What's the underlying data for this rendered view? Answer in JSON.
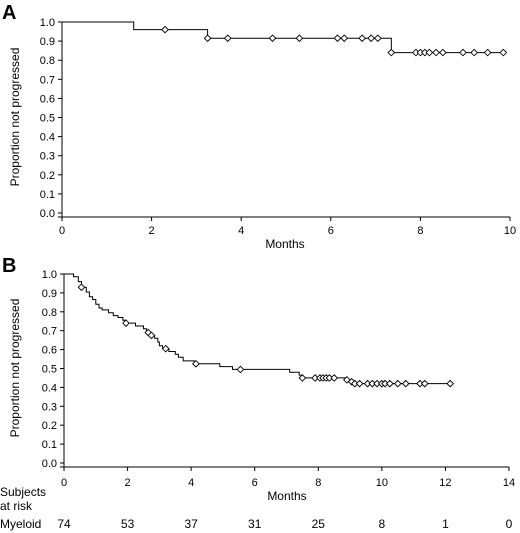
{
  "chart_data": [
    {
      "type": "line",
      "subtype": "kaplan-meier step",
      "panel_label": "A",
      "xlabel": "Months",
      "ylabel": "Proportion not progressed",
      "xlim": [
        0,
        10
      ],
      "ylim": [
        0,
        1.0
      ],
      "x_ticks": [
        0,
        2,
        4,
        6,
        8,
        10
      ],
      "y_ticks": [
        0.0,
        0.1,
        0.2,
        0.3,
        0.4,
        0.5,
        0.6,
        0.7,
        0.8,
        0.9,
        1.0
      ],
      "x_tick_labels": [
        "0",
        "2",
        "4",
        "6",
        "8",
        "10"
      ],
      "y_tick_labels": [
        "0.0",
        "0.1",
        "0.2",
        "0.3",
        "0.4",
        "0.5",
        "0.6",
        "0.7",
        "0.8",
        "0.9",
        "1.0"
      ],
      "grid": false,
      "series": [
        {
          "steps": [
            [
              0,
              1.0
            ],
            [
              1.6,
              0.96
            ],
            [
              3.25,
              0.915
            ],
            [
              7.35,
              0.84
            ],
            [
              9.85,
              0.84
            ]
          ],
          "censored": [
            [
              2.3,
              0.96
            ],
            [
              3.25,
              0.915
            ],
            [
              3.7,
              0.915
            ],
            [
              4.7,
              0.915
            ],
            [
              5.3,
              0.915
            ],
            [
              6.15,
              0.915
            ],
            [
              6.3,
              0.915
            ],
            [
              6.7,
              0.915
            ],
            [
              6.9,
              0.915
            ],
            [
              7.05,
              0.915
            ],
            [
              7.35,
              0.84
            ],
            [
              7.9,
              0.84
            ],
            [
              8.0,
              0.84
            ],
            [
              8.1,
              0.84
            ],
            [
              8.2,
              0.84
            ],
            [
              8.35,
              0.84
            ],
            [
              8.5,
              0.84
            ],
            [
              8.95,
              0.84
            ],
            [
              9.2,
              0.84
            ],
            [
              9.5,
              0.84
            ],
            [
              9.85,
              0.84
            ]
          ]
        }
      ]
    },
    {
      "type": "line",
      "subtype": "kaplan-meier step",
      "panel_label": "B",
      "xlabel": "Months",
      "ylabel": "Proportion not progressed",
      "xlim": [
        0,
        14
      ],
      "ylim": [
        0,
        1.0
      ],
      "x_ticks": [
        0,
        2,
        4,
        6,
        8,
        10,
        12,
        14
      ],
      "y_ticks": [
        0.0,
        0.1,
        0.2,
        0.3,
        0.4,
        0.5,
        0.6,
        0.7,
        0.8,
        0.9,
        1.0
      ],
      "x_tick_labels": [
        "0",
        "2",
        "4",
        "6",
        "8",
        "10",
        "12",
        "14"
      ],
      "y_tick_labels": [
        "0.0",
        "0.1",
        "0.2",
        "0.3",
        "0.4",
        "0.5",
        "0.6",
        "0.7",
        "0.8",
        "0.9",
        "1.0"
      ],
      "grid": false,
      "series": [
        {
          "name": "Myeloid",
          "steps": [
            [
              0,
              1.0
            ],
            [
              0.3,
              0.985
            ],
            [
              0.45,
              0.96
            ],
            [
              0.55,
              0.93
            ],
            [
              0.7,
              0.905
            ],
            [
              0.8,
              0.88
            ],
            [
              0.9,
              0.865
            ],
            [
              1.0,
              0.84
            ],
            [
              1.1,
              0.82
            ],
            [
              1.2,
              0.81
            ],
            [
              1.4,
              0.795
            ],
            [
              1.55,
              0.78
            ],
            [
              1.7,
              0.77
            ],
            [
              1.85,
              0.755
            ],
            [
              1.95,
              0.74
            ],
            [
              2.25,
              0.725
            ],
            [
              2.5,
              0.71
            ],
            [
              2.6,
              0.69
            ],
            [
              2.7,
              0.675
            ],
            [
              2.85,
              0.66
            ],
            [
              2.95,
              0.64
            ],
            [
              3.0,
              0.62
            ],
            [
              3.1,
              0.605
            ],
            [
              3.3,
              0.59
            ],
            [
              3.5,
              0.575
            ],
            [
              3.6,
              0.56
            ],
            [
              3.75,
              0.54
            ],
            [
              4.1,
              0.525
            ],
            [
              4.9,
              0.51
            ],
            [
              5.3,
              0.495
            ],
            [
              7.1,
              0.48
            ],
            [
              7.4,
              0.465
            ],
            [
              7.5,
              0.45
            ],
            [
              8.9,
              0.44
            ],
            [
              9.0,
              0.43
            ],
            [
              9.1,
              0.42
            ],
            [
              12.1,
              0.42
            ]
          ],
          "censored": [
            [
              0.55,
              0.93
            ],
            [
              1.95,
              0.74
            ],
            [
              2.65,
              0.69
            ],
            [
              2.75,
              0.675
            ],
            [
              3.2,
              0.605
            ],
            [
              4.15,
              0.525
            ],
            [
              5.55,
              0.495
            ],
            [
              7.5,
              0.45
            ],
            [
              7.9,
              0.45
            ],
            [
              8.05,
              0.45
            ],
            [
              8.15,
              0.45
            ],
            [
              8.25,
              0.45
            ],
            [
              8.35,
              0.45
            ],
            [
              8.5,
              0.45
            ],
            [
              8.9,
              0.44
            ],
            [
              9.05,
              0.43
            ],
            [
              9.15,
              0.42
            ],
            [
              9.3,
              0.42
            ],
            [
              9.55,
              0.42
            ],
            [
              9.7,
              0.42
            ],
            [
              9.85,
              0.42
            ],
            [
              10.0,
              0.42
            ],
            [
              10.1,
              0.42
            ],
            [
              10.25,
              0.42
            ],
            [
              10.5,
              0.42
            ],
            [
              10.75,
              0.42
            ],
            [
              11.2,
              0.42
            ],
            [
              11.35,
              0.42
            ],
            [
              12.15,
              0.42
            ]
          ]
        }
      ],
      "risk_table": {
        "header_lines": [
          "Subjects",
          "at risk"
        ],
        "row_label": "Myeloid",
        "times": [
          0,
          2,
          4,
          6,
          8,
          10,
          12,
          14
        ],
        "counts": [
          "74",
          "53",
          "37",
          "31",
          "25",
          "8",
          "1",
          "0"
        ]
      }
    }
  ]
}
